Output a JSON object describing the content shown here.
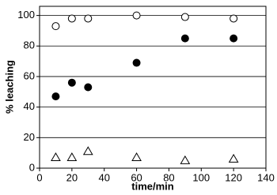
{
  "chart_data": {
    "type": "scatter",
    "x_label": "time/min",
    "y_label": "% leaching",
    "x": [
      10,
      20,
      30,
      60,
      90,
      120
    ],
    "series": [
      {
        "marker": "circle-open",
        "color": "#000000",
        "values": [
          93,
          98,
          98,
          100,
          99,
          98
        ]
      },
      {
        "marker": "circle-filled",
        "color": "#000000",
        "values": [
          47,
          56,
          53,
          69,
          85,
          85
        ]
      },
      {
        "marker": "triangle-open",
        "color": "#000000",
        "values": [
          7,
          7,
          11,
          7,
          5,
          6
        ]
      }
    ],
    "xlim": [
      0,
      140
    ],
    "xticks": [
      0,
      20,
      40,
      60,
      80,
      100,
      120,
      140
    ],
    "ylim": [
      0,
      106
    ],
    "yticks": [
      0,
      20,
      40,
      60,
      80,
      100
    ],
    "grid": true
  }
}
